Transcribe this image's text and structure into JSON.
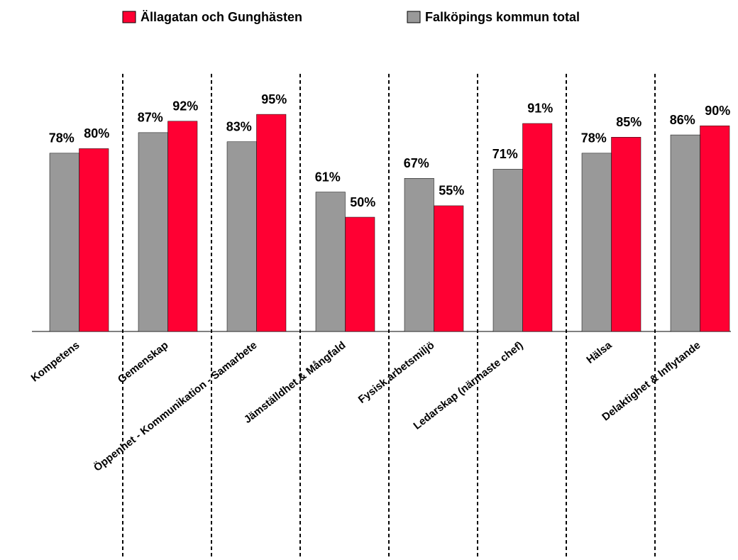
{
  "chart_data": {
    "type": "bar",
    "categories": [
      "Kompetens",
      "Gemenskap",
      "Öppenhet - Kommunikation - Samarbete",
      "Jämställdhet & Mångfald",
      "Fysisk arbetsmiljö",
      "Ledarskap (närmaste chef)",
      "Hälsa",
      "Delaktighet & Inflytande"
    ],
    "series": [
      {
        "name": "Ällagatan och Gunghästen",
        "color": "#ff0033",
        "values": [
          80,
          92,
          95,
          50,
          55,
          91,
          85,
          90
        ],
        "value_labels": [
          "80%",
          "92%",
          "95%",
          "50%",
          "55%",
          "91%",
          "85%",
          "90%"
        ]
      },
      {
        "name": "Falköpings kommun total",
        "color": "#999999",
        "values": [
          78,
          87,
          83,
          61,
          67,
          71,
          78,
          86
        ],
        "value_labels": [
          "78%",
          "87%",
          "83%",
          "61%",
          "67%",
          "71%",
          "78%",
          "86%"
        ]
      }
    ],
    "ylim": [
      0,
      100
    ]
  }
}
